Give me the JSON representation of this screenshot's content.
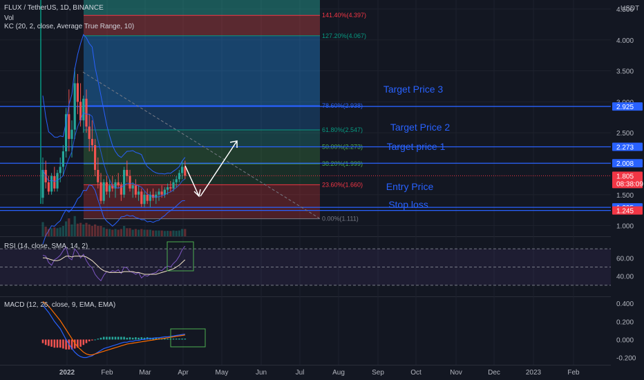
{
  "header": {
    "symbol": "FLUX / TetherUS, 1D, BINANCE",
    "vol": "Vol",
    "kc": "KC (20, 2, close, Average True Range, 10)",
    "rsi": "RSI (14, close, SMA, 14, 2)",
    "macd": "MACD (12, 26, close, 9, EMA, EMA)"
  },
  "currency": "USDT",
  "chart_data": {
    "type": "candlestick",
    "symbol": "FLUX / TetherUS",
    "timeframe": "1D",
    "exchange": "BINANCE",
    "x_labels": [
      "2022",
      "Feb",
      "Mar",
      "Apr",
      "May",
      "Jun",
      "Jul",
      "Aug",
      "Sep",
      "Oct",
      "Nov",
      "Dec",
      "2023",
      "Feb"
    ],
    "price_ticks": [
      "4.500",
      "4.000",
      "3.500",
      "3.000",
      "2.500",
      "2.000",
      "1.500",
      "1.000"
    ],
    "y_range": [
      0.85,
      4.6
    ],
    "candles": [
      [
        1.45,
        2.1,
        1.35,
        1.9
      ],
      [
        1.9,
        2.05,
        1.6,
        1.7
      ],
      [
        1.7,
        1.8,
        1.5,
        1.55
      ],
      [
        1.55,
        1.85,
        1.5,
        1.8
      ],
      [
        1.8,
        1.95,
        1.55,
        1.6
      ],
      [
        1.6,
        1.9,
        1.55,
        1.85
      ],
      [
        1.85,
        2.1,
        1.7,
        1.95
      ],
      [
        1.95,
        2.3,
        1.8,
        2.2
      ],
      [
        2.2,
        2.9,
        2.1,
        2.8
      ],
      [
        2.8,
        3.2,
        2.2,
        2.4
      ],
      [
        2.4,
        2.7,
        2.1,
        2.55
      ],
      [
        2.55,
        3.55,
        2.4,
        3.3
      ],
      [
        3.3,
        3.45,
        2.8,
        3.0
      ],
      [
        3.0,
        3.3,
        2.6,
        2.7
      ],
      [
        2.7,
        3.1,
        2.5,
        3.05
      ],
      [
        3.05,
        3.2,
        2.5,
        2.6
      ],
      [
        2.6,
        2.8,
        2.2,
        2.4
      ],
      [
        2.4,
        2.7,
        2.2,
        2.3
      ],
      [
        2.3,
        2.4,
        1.8,
        1.9
      ],
      [
        1.9,
        2.1,
        1.6,
        1.7
      ],
      [
        1.7,
        1.85,
        1.35,
        1.4
      ],
      [
        1.4,
        1.75,
        1.35,
        1.7
      ],
      [
        1.7,
        1.8,
        1.5,
        1.55
      ],
      [
        1.55,
        1.75,
        1.45,
        1.65
      ],
      [
        1.65,
        1.8,
        1.55,
        1.6
      ],
      [
        1.6,
        1.75,
        1.45,
        1.7
      ],
      [
        1.7,
        1.85,
        1.6,
        1.65
      ],
      [
        1.65,
        1.7,
        1.4,
        1.5
      ],
      [
        1.5,
        1.95,
        1.45,
        1.9
      ],
      [
        1.9,
        2.05,
        1.7,
        1.8
      ],
      [
        1.8,
        1.9,
        1.55,
        1.6
      ],
      [
        1.6,
        1.7,
        1.45,
        1.65
      ],
      [
        1.65,
        1.75,
        1.45,
        1.5
      ],
      [
        1.5,
        1.65,
        1.4,
        1.55
      ],
      [
        1.55,
        1.6,
        1.3,
        1.35
      ],
      [
        1.35,
        1.55,
        1.3,
        1.5
      ],
      [
        1.5,
        1.6,
        1.35,
        1.4
      ],
      [
        1.4,
        1.55,
        1.3,
        1.5
      ],
      [
        1.5,
        1.6,
        1.4,
        1.45
      ],
      [
        1.45,
        1.55,
        1.35,
        1.5
      ],
      [
        1.5,
        1.6,
        1.4,
        1.55
      ],
      [
        1.55,
        1.65,
        1.45,
        1.5
      ],
      [
        1.5,
        1.62,
        1.45,
        1.58
      ],
      [
        1.58,
        1.68,
        1.5,
        1.62
      ],
      [
        1.62,
        1.72,
        1.55,
        1.6
      ],
      [
        1.6,
        1.75,
        1.55,
        1.7
      ],
      [
        1.7,
        1.8,
        1.62,
        1.75
      ],
      [
        1.75,
        1.9,
        1.7,
        1.85
      ],
      [
        1.85,
        2.05,
        1.75,
        1.95
      ],
      [
        1.95,
        2.05,
        1.75,
        1.805
      ]
    ],
    "levels": [
      {
        "label": "141.40%(4.397)",
        "value": 4.397,
        "color": "#f23645"
      },
      {
        "label": "127.20%(4.067)",
        "value": 4.067,
        "color": "#089981"
      },
      {
        "label": "78.60%(2.938)",
        "value": 2.938,
        "color": "#2962ff"
      },
      {
        "label": "61.80%(2.547)",
        "value": 2.547,
        "color": "#089981"
      },
      {
        "label": "50.00%(2.273)",
        "value": 2.273,
        "color": "#4caf50"
      },
      {
        "label": "38.20%(1.999)",
        "value": 1.999,
        "color": "#4caf50"
      },
      {
        "label": "23.60%(1.660)",
        "value": 1.66,
        "color": "#f23645"
      },
      {
        "label": "0.00%(1.111)",
        "value": 1.111,
        "color": "#787b86"
      }
    ],
    "horizontal_lines": [
      2.925,
      2.273,
      2.008,
      1.295,
      1.245
    ],
    "price_tags": [
      {
        "text": "2.925",
        "value": 2.925,
        "color": "#2962ff"
      },
      {
        "text": "2.273",
        "value": 2.273,
        "color": "#2962ff"
      },
      {
        "text": "2.008",
        "value": 2.008,
        "color": "#2962ff"
      },
      {
        "text": "1.805",
        "value": 1.805,
        "color": "#f23645"
      },
      {
        "text": "1.295",
        "value": 1.295,
        "color": "#2962ff"
      },
      {
        "text": "1.245",
        "value": 1.245,
        "color": "#f23645"
      }
    ],
    "countdown": "08:38:09",
    "annotations": [
      {
        "text": "Target Price 3",
        "value": 2.925
      },
      {
        "text": "Target Price 2",
        "value": 2.273
      },
      {
        "text": "Target price 1",
        "value": 2.008
      },
      {
        "text": "Entry Price",
        "value": 1.295
      },
      {
        "text": "Stop loss",
        "value": 1.245
      }
    ],
    "rsi": {
      "ticks": [
        "60.00",
        "40.00"
      ],
      "range": [
        20,
        80
      ],
      "bands": [
        70,
        50,
        30
      ],
      "values": [
        63,
        62,
        55,
        52,
        58,
        60,
        63,
        68,
        72,
        60,
        58,
        70,
        66,
        60,
        64,
        57,
        52,
        49,
        42,
        38,
        35,
        41,
        45,
        44,
        46,
        45,
        47,
        43,
        50,
        49,
        45,
        44,
        42,
        44,
        38,
        41,
        40,
        42,
        43,
        44,
        47,
        46,
        49,
        51,
        50,
        54,
        57,
        62,
        69,
        73
      ],
      "signal": [
        60,
        60,
        59,
        58,
        57,
        57,
        58,
        60,
        62,
        62,
        61,
        62,
        62,
        62,
        62,
        61,
        59,
        57,
        54,
        51,
        48,
        46,
        45,
        44,
        44,
        44,
        44,
        44,
        45,
        45,
        45,
        45,
        44,
        44,
        43,
        42,
        42,
        42,
        42,
        42,
        43,
        44,
        45,
        46,
        47,
        48,
        50,
        52,
        55,
        58
      ]
    },
    "macd": {
      "ticks": [
        "0.400",
        "0.200",
        "0.000",
        "-0.200"
      ],
      "range": [
        -0.28,
        0.47
      ],
      "macd_line": [
        0.38,
        0.34,
        0.3,
        0.25,
        0.2,
        0.16,
        0.12,
        0.06,
        0.0,
        -0.05,
        -0.1,
        -0.14,
        -0.17,
        -0.19,
        -0.2,
        -0.2,
        -0.19,
        -0.18,
        -0.16,
        -0.14,
        -0.12,
        -0.1,
        -0.09,
        -0.08,
        -0.07,
        -0.06,
        -0.05,
        -0.04,
        -0.03,
        -0.03,
        -0.02,
        -0.02,
        -0.01,
        -0.01,
        0.0,
        0.0,
        0.01,
        0.01,
        0.015,
        0.02,
        0.02,
        0.025,
        0.03,
        0.03,
        0.035,
        0.04,
        0.045,
        0.05,
        0.055,
        0.06
      ],
      "signal_line": [
        0.42,
        0.4,
        0.37,
        0.33,
        0.29,
        0.25,
        0.21,
        0.16,
        0.11,
        0.06,
        0.01,
        -0.04,
        -0.08,
        -0.11,
        -0.14,
        -0.16,
        -0.17,
        -0.17,
        -0.16,
        -0.15,
        -0.14,
        -0.13,
        -0.12,
        -0.11,
        -0.1,
        -0.09,
        -0.08,
        -0.07,
        -0.06,
        -0.05,
        -0.045,
        -0.04,
        -0.035,
        -0.03,
        -0.025,
        -0.02,
        -0.015,
        -0.01,
        -0.005,
        0.0,
        0.005,
        0.01,
        0.015,
        0.02,
        0.025,
        0.03,
        0.035,
        0.04,
        0.045,
        0.05
      ]
    }
  }
}
